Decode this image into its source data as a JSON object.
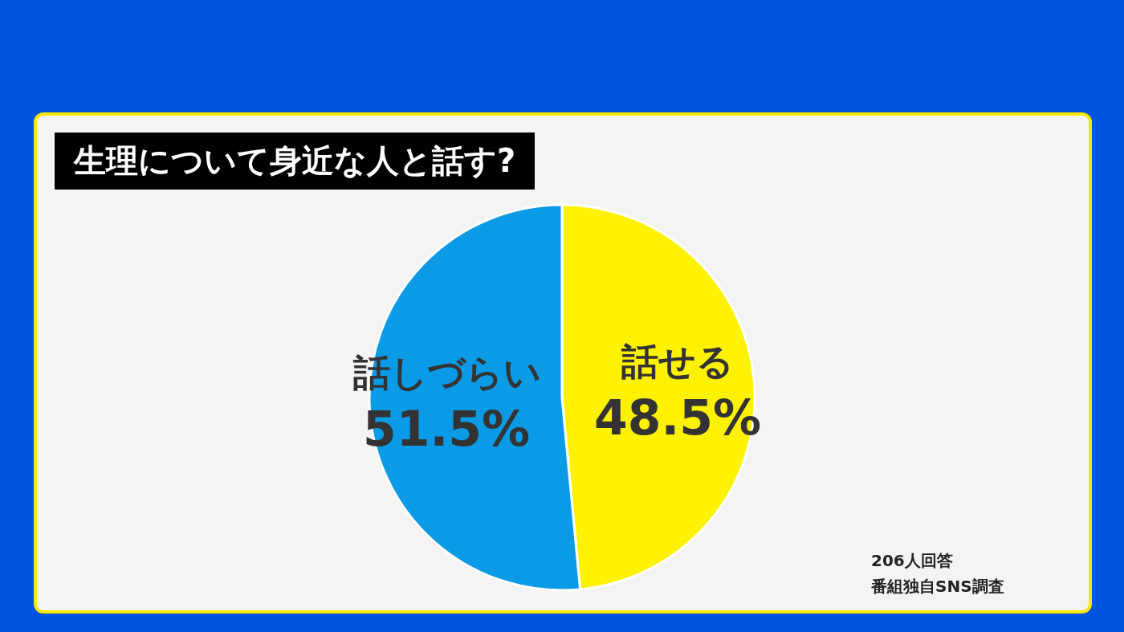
{
  "chart_data": {
    "type": "pie",
    "title": "生理について身近な人と話す?",
    "categories": [
      "話せる",
      "話しづらい"
    ],
    "values": [
      48.5,
      51.5
    ],
    "value_labels": [
      "48.5%",
      "51.5%"
    ],
    "colors": [
      "#fff200",
      "#0a9ae6"
    ],
    "annotations": [
      "206人回答",
      "番組独自SNS調査"
    ]
  }
}
